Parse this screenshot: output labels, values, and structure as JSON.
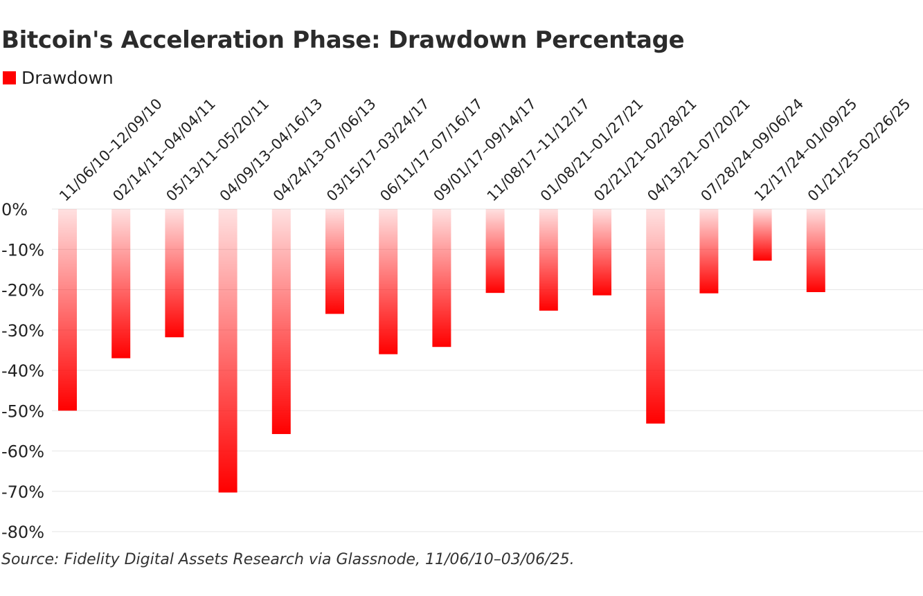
{
  "title": "Bitcoin's Acceleration Phase: Drawdown Percentage",
  "legend": {
    "label": "Drawdown",
    "color": "#ff0000"
  },
  "source": "Source: Fidelity Digital Assets Research via Glassnode, 11/06/10–03/06/25.",
  "chart_data": {
    "type": "bar",
    "categories": [
      "11/06/10–12/09/10",
      "02/14/11–04/04/11",
      "05/13/11–05/20/11",
      "04/09/13–04/16/13",
      "04/24/13–07/06/13",
      "03/15/17–03/24/17",
      "06/11/17–07/16/17",
      "09/01/17–09/14/17",
      "11/08/17–11/12/17",
      "01/08/21–01/27/21",
      "02/21/21–02/28/21",
      "04/13/21–07/20/21",
      "07/28/24–09/06/24",
      "12/17/24–01/09/25",
      "01/21/25–02/26/25"
    ],
    "series": [
      {
        "name": "Drawdown",
        "values": [
          -50,
          -37,
          -31.8,
          -70.3,
          -55.8,
          -26,
          -36,
          -34.2,
          -20.8,
          -25.2,
          -21.4,
          -53.2,
          -20.9,
          -12.8,
          -20.6
        ]
      }
    ],
    "ylim": [
      -80,
      0
    ],
    "yticks": [
      "0%",
      "-10%",
      "-20%",
      "-30%",
      "-40%",
      "-50%",
      "-60%",
      "-70%",
      "-80%"
    ],
    "ytick_values": [
      0,
      -10,
      -20,
      -30,
      -40,
      -50,
      -60,
      -70,
      -80
    ],
    "grid": true,
    "legend_position": "top-left",
    "bar_color": "#ff0000",
    "gridline_color": "#e6e6e6"
  }
}
